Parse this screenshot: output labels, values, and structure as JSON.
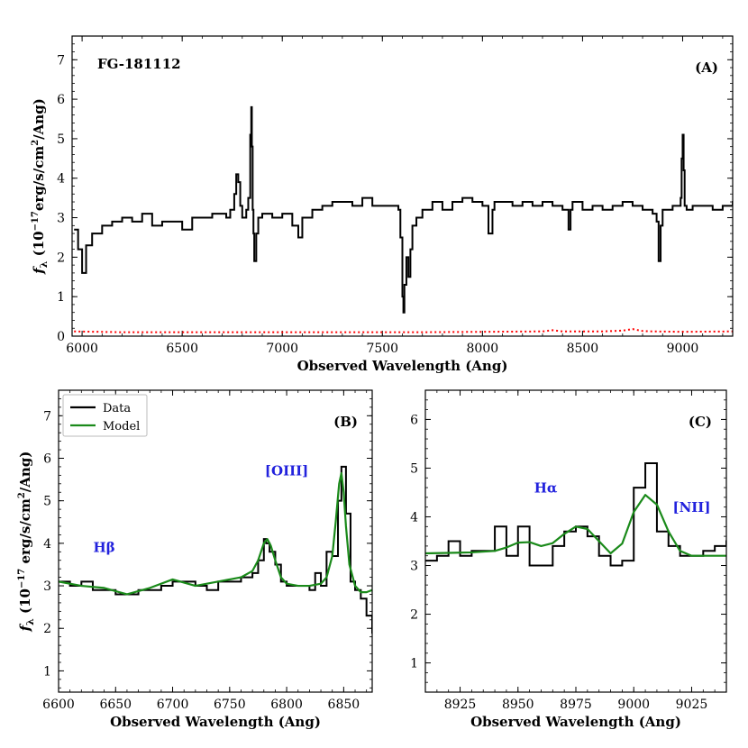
{
  "chart_data": [
    {
      "type": "line",
      "panel_label": "(A)",
      "object_label": "FG-181112",
      "xlabel": "Observed Wavelength (Ang)",
      "ylabel": "f_λ (10^-17 erg/s/cm^2/Ang)",
      "ylabel_parts": {
        "f": "f",
        "sub": "λ",
        "prefix": "(10",
        "exp": "−17",
        "unit": "erg/s/cm",
        "exp2": "2",
        "suffix": "/Ang)"
      },
      "xlim": [
        5950,
        9250
      ],
      "ylim": [
        0,
        7.6
      ],
      "xticks": [
        6000,
        6500,
        7000,
        7500,
        8000,
        8500,
        9000
      ],
      "yticks": [
        0,
        1,
        2,
        3,
        4,
        5,
        6,
        7
      ],
      "series": [
        {
          "color": "#000000",
          "style": "step",
          "x": [
            5960,
            5980,
            6000,
            6020,
            6050,
            6100,
            6150,
            6200,
            6250,
            6300,
            6350,
            6400,
            6450,
            6500,
            6550,
            6600,
            6650,
            6700,
            6720,
            6740,
            6760,
            6770,
            6780,
            6790,
            6800,
            6820,
            6830,
            6840,
            6845,
            6848,
            6852,
            6856,
            6860,
            6870,
            6880,
            6900,
            6950,
            7000,
            7050,
            7080,
            7100,
            7150,
            7200,
            7250,
            7300,
            7350,
            7400,
            7450,
            7500,
            7550,
            7580,
            7590,
            7600,
            7605,
            7610,
            7620,
            7630,
            7640,
            7650,
            7670,
            7700,
            7750,
            7800,
            7850,
            7900,
            7950,
            8000,
            8030,
            8050,
            8060,
            8100,
            8150,
            8200,
            8250,
            8300,
            8350,
            8400,
            8430,
            8440,
            8450,
            8500,
            8550,
            8600,
            8650,
            8700,
            8750,
            8800,
            8850,
            8870,
            8880,
            8890,
            8900,
            8950,
            8990,
            8995,
            9000,
            9005,
            9010,
            9020,
            9050,
            9100,
            9150,
            9200,
            9250
          ],
          "y": [
            2.7,
            2.2,
            1.6,
            2.3,
            2.6,
            2.8,
            2.9,
            3.0,
            2.9,
            3.1,
            2.8,
            2.9,
            2.9,
            2.7,
            3.0,
            3.0,
            3.1,
            3.1,
            3.0,
            3.2,
            3.6,
            4.1,
            3.9,
            3.3,
            3.0,
            3.2,
            3.5,
            5.1,
            5.8,
            4.8,
            3.2,
            2.6,
            1.9,
            2.6,
            3.0,
            3.1,
            3.0,
            3.1,
            2.8,
            2.5,
            3.0,
            3.2,
            3.3,
            3.4,
            3.4,
            3.3,
            3.5,
            3.3,
            3.3,
            3.3,
            3.2,
            2.5,
            1.0,
            0.6,
            1.3,
            2.0,
            1.5,
            2.2,
            2.8,
            3.0,
            3.2,
            3.4,
            3.2,
            3.4,
            3.5,
            3.4,
            3.3,
            2.6,
            3.2,
            3.4,
            3.4,
            3.3,
            3.4,
            3.3,
            3.4,
            3.3,
            3.2,
            2.7,
            3.2,
            3.4,
            3.2,
            3.3,
            3.2,
            3.3,
            3.4,
            3.3,
            3.2,
            3.1,
            2.9,
            1.9,
            2.8,
            3.2,
            3.3,
            3.5,
            4.5,
            5.1,
            4.2,
            3.3,
            3.2,
            3.3,
            3.3,
            3.2,
            3.3,
            3.4
          ]
        },
        {
          "color": "#ff0000",
          "style": "dotted",
          "x": [
            5960,
            6200,
            6500,
            6800,
            7100,
            7400,
            7700,
            8000,
            8300,
            8350,
            8400,
            8600,
            8700,
            8750,
            8800,
            8850,
            9000,
            9250
          ],
          "y": [
            0.12,
            0.1,
            0.1,
            0.1,
            0.1,
            0.1,
            0.1,
            0.11,
            0.12,
            0.15,
            0.12,
            0.12,
            0.14,
            0.18,
            0.13,
            0.12,
            0.11,
            0.12
          ]
        }
      ]
    },
    {
      "type": "line",
      "panel_label": "(B)",
      "xlabel": "Observed Wavelength (Ang)",
      "ylabel": "f_λ (10^-17 erg/s/cm^2/Ang)",
      "ylabel_parts": {
        "f": "f",
        "sub": "λ",
        "prefix": "(10",
        "exp": "−17",
        "unit": " erg/s/cm",
        "exp2": "2",
        "suffix": "/Ang)"
      },
      "xlim": [
        6600,
        6875
      ],
      "ylim": [
        0.5,
        7.6
      ],
      "xticks": [
        6600,
        6650,
        6700,
        6750,
        6800,
        6850
      ],
      "yticks": [
        1,
        2,
        3,
        4,
        5,
        6,
        7
      ],
      "legend": {
        "position": "top-left",
        "entries": [
          "Data",
          "Model"
        ]
      },
      "annotations": [
        {
          "text": "Hβ",
          "x": 6640,
          "y": 3.8
        },
        {
          "text": "[OIII]",
          "x": 6800,
          "y": 5.6
        }
      ],
      "series": [
        {
          "name": "Data",
          "color": "#000000",
          "style": "step",
          "x": [
            6600,
            6610,
            6620,
            6630,
            6640,
            6650,
            6660,
            6670,
            6680,
            6690,
            6700,
            6710,
            6720,
            6730,
            6740,
            6750,
            6760,
            6770,
            6775,
            6780,
            6782,
            6785,
            6790,
            6795,
            6800,
            6810,
            6820,
            6825,
            6830,
            6835,
            6840,
            6845,
            6848,
            6852,
            6856,
            6860,
            6865,
            6870,
            6875
          ],
          "y": [
            3.1,
            3.0,
            3.1,
            2.9,
            2.9,
            2.8,
            2.8,
            2.9,
            2.9,
            3.0,
            3.1,
            3.1,
            3.0,
            2.9,
            3.1,
            3.1,
            3.2,
            3.3,
            3.6,
            4.1,
            4.0,
            3.8,
            3.5,
            3.1,
            3.0,
            3.0,
            2.9,
            3.3,
            3.0,
            3.8,
            3.7,
            5.0,
            5.8,
            4.7,
            3.1,
            2.9,
            2.7,
            2.3,
            1.9
          ]
        },
        {
          "name": "Model",
          "color": "#1a8a1a",
          "style": "line",
          "x": [
            6600,
            6620,
            6640,
            6660,
            6680,
            6700,
            6720,
            6740,
            6760,
            6770,
            6775,
            6780,
            6783,
            6786,
            6790,
            6795,
            6800,
            6810,
            6820,
            6830,
            6835,
            6840,
            6843,
            6846,
            6848,
            6850,
            6852,
            6855,
            6860,
            6865,
            6870,
            6875
          ],
          "y": [
            3.1,
            3.0,
            2.95,
            2.8,
            2.95,
            3.15,
            3.0,
            3.1,
            3.2,
            3.35,
            3.6,
            4.0,
            4.1,
            3.95,
            3.6,
            3.2,
            3.05,
            3.0,
            3.0,
            3.05,
            3.2,
            3.7,
            4.5,
            5.4,
            5.65,
            5.2,
            4.4,
            3.5,
            3.0,
            2.85,
            2.85,
            2.9
          ]
        }
      ]
    },
    {
      "type": "line",
      "panel_label": "(C)",
      "xlabel": "Observed Wavelength (Ang)",
      "xlim": [
        8910,
        9040
      ],
      "ylim": [
        0.4,
        6.6
      ],
      "xticks": [
        8925,
        8950,
        8975,
        9000,
        9025
      ],
      "yticks": [
        1,
        2,
        3,
        4,
        5,
        6
      ],
      "annotations": [
        {
          "text": "Hα",
          "x": 8962,
          "y": 4.5
        },
        {
          "text": "[NII]",
          "x": 9025,
          "y": 4.1
        }
      ],
      "series": [
        {
          "name": "Data",
          "color": "#000000",
          "style": "step",
          "x": [
            8910,
            8915,
            8920,
            8925,
            8930,
            8935,
            8940,
            8945,
            8950,
            8955,
            8960,
            8965,
            8970,
            8975,
            8980,
            8985,
            8990,
            8995,
            9000,
            9005,
            9010,
            9015,
            9020,
            9025,
            9030,
            9035,
            9040
          ],
          "y": [
            3.1,
            3.2,
            3.5,
            3.2,
            3.3,
            3.3,
            3.8,
            3.2,
            3.8,
            3.0,
            3.0,
            3.4,
            3.7,
            3.8,
            3.6,
            3.2,
            3.0,
            3.1,
            4.6,
            5.1,
            3.7,
            3.4,
            3.2,
            3.2,
            3.3,
            3.4,
            3.5
          ]
        },
        {
          "name": "Model",
          "color": "#1a8a1a",
          "style": "line",
          "x": [
            8910,
            8920,
            8930,
            8940,
            8945,
            8950,
            8955,
            8960,
            8965,
            8970,
            8975,
            8980,
            8985,
            8990,
            8995,
            9000,
            9005,
            9010,
            9015,
            9020,
            9025,
            9030,
            9040
          ],
          "y": [
            3.25,
            3.26,
            3.27,
            3.3,
            3.37,
            3.47,
            3.48,
            3.4,
            3.46,
            3.65,
            3.8,
            3.75,
            3.5,
            3.25,
            3.45,
            4.1,
            4.45,
            4.25,
            3.7,
            3.3,
            3.2,
            3.2,
            3.2
          ]
        }
      ]
    }
  ]
}
